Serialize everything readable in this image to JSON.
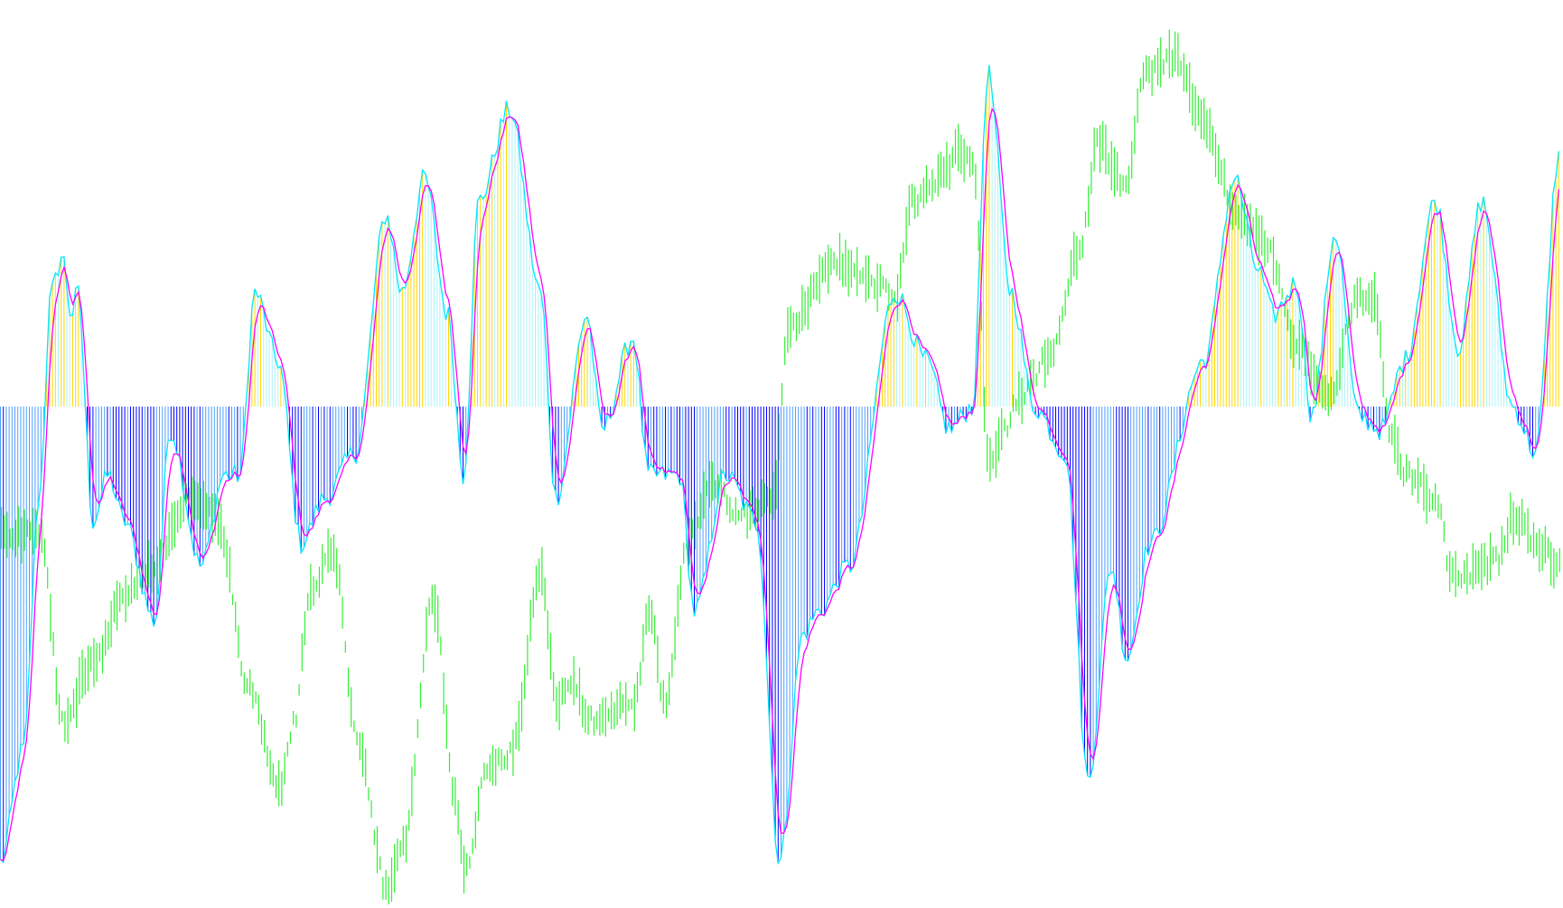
{
  "colors": {
    "background": "#ffffff",
    "price_bars": "#33ee33",
    "histogram_positive_rising": "#ffd700",
    "histogram_positive_falling": "#aff4f8",
    "histogram_negative_falling": "#0000ff",
    "histogram_negative_rising": "#4fa0ff",
    "signal_line": "#ff00ff",
    "oscillator_line": "#00e5ff",
    "zero_line": "#e0e0e0"
  },
  "chart_data": {
    "type": "histogram_with_price_overlay",
    "title": "",
    "xlabel": "",
    "ylabel": "",
    "grid": false,
    "legend": "none",
    "oscillator_range": [
      -1.0,
      0.8
    ],
    "price_range": [
      0.0,
      1.0
    ],
    "oscillator_keypoints": [
      [
        0,
        -1.0
      ],
      [
        1.5,
        -0.75
      ],
      [
        2.5,
        -0.2
      ],
      [
        3.3,
        0.25
      ],
      [
        4.0,
        0.33
      ],
      [
        4.6,
        0.2
      ],
      [
        5.0,
        0.25
      ],
      [
        6.0,
        -0.25
      ],
      [
        7.0,
        -0.15
      ],
      [
        8.0,
        -0.25
      ],
      [
        10.0,
        -0.47
      ],
      [
        11.0,
        -0.05
      ],
      [
        13.0,
        -0.35
      ],
      [
        14.5,
        -0.15
      ],
      [
        15.5,
        -0.15
      ],
      [
        16.5,
        0.25
      ],
      [
        18.0,
        0.1
      ],
      [
        19.5,
        -0.3
      ],
      [
        21.0,
        -0.2
      ],
      [
        23.0,
        -0.1
      ],
      [
        25.0,
        0.42
      ],
      [
        26.0,
        0.25
      ],
      [
        27.5,
        0.5
      ],
      [
        29.0,
        0.2
      ],
      [
        30.0,
        -0.15
      ],
      [
        31.0,
        0.45
      ],
      [
        33.0,
        0.65
      ],
      [
        35.0,
        0.25
      ],
      [
        36.0,
        -0.2
      ],
      [
        38.0,
        0.2
      ],
      [
        39.0,
        -0.05
      ],
      [
        41.0,
        0.15
      ],
      [
        42.0,
        -0.15
      ],
      [
        44.0,
        -0.15
      ],
      [
        45.0,
        -0.45
      ],
      [
        47.0,
        -0.15
      ],
      [
        49.0,
        -0.25
      ],
      [
        50.5,
        -1.0
      ],
      [
        52.0,
        -0.5
      ],
      [
        53.0,
        -0.45
      ],
      [
        55.0,
        -0.35
      ],
      [
        58.0,
        0.25
      ],
      [
        60.0,
        0.1
      ],
      [
        61.5,
        -0.05
      ],
      [
        63.0,
        0.0
      ],
      [
        64.0,
        0.73
      ],
      [
        65.5,
        0.25
      ],
      [
        67.0,
        0.0
      ],
      [
        69.0,
        -0.1
      ],
      [
        70.5,
        -0.82
      ],
      [
        72.0,
        -0.35
      ],
      [
        73.0,
        -0.55
      ],
      [
        74.5,
        -0.3
      ],
      [
        78.0,
        0.1
      ],
      [
        80.0,
        0.5
      ],
      [
        81.5,
        0.3
      ],
      [
        82.5,
        0.2
      ],
      [
        84.0,
        0.27
      ],
      [
        85.0,
        -0.02
      ],
      [
        86.5,
        0.38
      ],
      [
        88.0,
        -0.02
      ],
      [
        89.5,
        -0.05
      ],
      [
        91.0,
        0.1
      ],
      [
        93.0,
        0.45
      ],
      [
        94.5,
        0.13
      ],
      [
        96.0,
        0.45
      ],
      [
        98.0,
        0.0
      ],
      [
        99.5,
        -0.1
      ],
      [
        101.0,
        0.55
      ]
    ],
    "price_keypoints": [
      [
        0,
        0.42
      ],
      [
        2.5,
        0.42
      ],
      [
        4.0,
        0.2
      ],
      [
        6.0,
        0.27
      ],
      [
        8.0,
        0.35
      ],
      [
        10.0,
        0.38
      ],
      [
        12.0,
        0.46
      ],
      [
        14.0,
        0.44
      ],
      [
        16.0,
        0.24
      ],
      [
        18.0,
        0.12
      ],
      [
        19.0,
        0.2
      ],
      [
        20.0,
        0.35
      ],
      [
        21.5,
        0.4
      ],
      [
        23.0,
        0.18
      ],
      [
        25.0,
        0.0
      ],
      [
        26.0,
        0.05
      ],
      [
        28.0,
        0.34
      ],
      [
        29.5,
        0.1
      ],
      [
        30.0,
        0.02
      ],
      [
        31.5,
        0.14
      ],
      [
        33.0,
        0.16
      ],
      [
        35.0,
        0.37
      ],
      [
        36.0,
        0.22
      ],
      [
        37.0,
        0.25
      ],
      [
        38.0,
        0.2
      ],
      [
        41.0,
        0.22
      ],
      [
        42.0,
        0.33
      ],
      [
        43.0,
        0.22
      ],
      [
        44.5,
        0.41
      ],
      [
        46.0,
        0.48
      ],
      [
        48.0,
        0.44
      ],
      [
        50.0,
        0.46
      ],
      [
        51.0,
        0.66
      ],
      [
        54.0,
        0.74
      ],
      [
        56.0,
        0.72
      ],
      [
        58.0,
        0.7
      ],
      [
        59.0,
        0.81
      ],
      [
        61.0,
        0.84
      ],
      [
        62.0,
        0.87
      ],
      [
        63.0,
        0.86
      ],
      [
        64.0,
        0.5
      ],
      [
        65.0,
        0.54
      ],
      [
        66.0,
        0.58
      ],
      [
        68.0,
        0.63
      ],
      [
        70.0,
        0.76
      ],
      [
        71.0,
        0.88
      ],
      [
        73.0,
        0.83
      ],
      [
        74.0,
        0.96
      ],
      [
        76.0,
        0.98
      ],
      [
        78.0,
        0.9
      ],
      [
        80.0,
        0.8
      ],
      [
        82.0,
        0.76
      ],
      [
        84.0,
        0.64
      ],
      [
        86.0,
        0.58
      ],
      [
        88.0,
        0.7
      ],
      [
        89.0,
        0.69
      ],
      [
        90.0,
        0.54
      ],
      [
        91.0,
        0.49
      ],
      [
        93.0,
        0.46
      ],
      [
        94.0,
        0.37
      ],
      [
        95.0,
        0.37
      ],
      [
        96.0,
        0.38
      ],
      [
        97.0,
        0.39
      ],
      [
        98.0,
        0.44
      ],
      [
        100.0,
        0.4
      ],
      [
        101.0,
        0.38
      ]
    ]
  }
}
